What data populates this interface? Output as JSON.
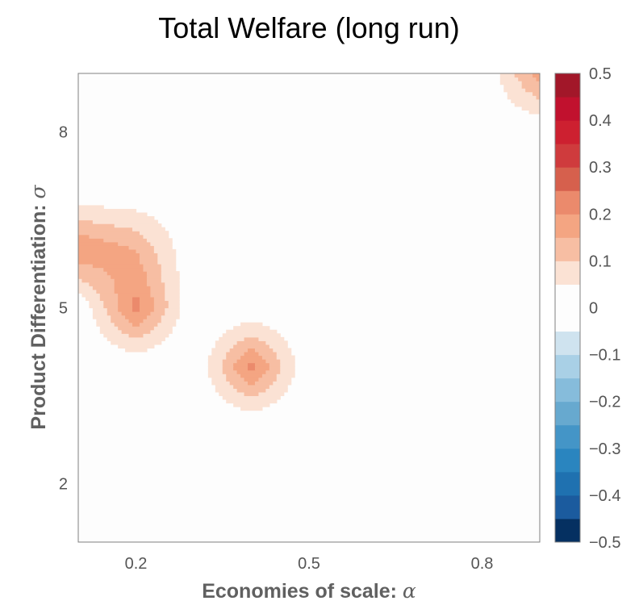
{
  "chart_data": {
    "type": "heatmap",
    "title": "Total Welfare (long run)",
    "xlabel": "Economies of scale: ",
    "xlabel_symbol": "α",
    "ylabel": "Product Differentiation: ",
    "ylabel_symbol": "σ",
    "x_ticks": [
      {
        "value": 0.2,
        "label": "0.2"
      },
      {
        "value": 0.5,
        "label": "0.5"
      },
      {
        "value": 0.8,
        "label": "0.8"
      }
    ],
    "y_ticks": [
      {
        "value": 2,
        "label": "2"
      },
      {
        "value": 5,
        "label": "5"
      },
      {
        "value": 8,
        "label": "8"
      }
    ],
    "xlim": [
      0.1,
      0.9
    ],
    "ylim": [
      1,
      9
    ],
    "grid": false,
    "grid_x": [
      0.1,
      0.2,
      0.3,
      0.4,
      0.5,
      0.6,
      0.7,
      0.8,
      0.9
    ],
    "grid_y": [
      1,
      2,
      3,
      4,
      5,
      6,
      7,
      8,
      9
    ],
    "z": [
      [
        0,
        0,
        0,
        0,
        0,
        0,
        0,
        0,
        0
      ],
      [
        0,
        0,
        0,
        0,
        0,
        0,
        0,
        0,
        0
      ],
      [
        0,
        0,
        0,
        0,
        0,
        0,
        0,
        0,
        0
      ],
      [
        0,
        0,
        0,
        0.22,
        0,
        0,
        0,
        0,
        0
      ],
      [
        0,
        0.22,
        0,
        0,
        0,
        0,
        0,
        0,
        0
      ],
      [
        0.2,
        0.15,
        0,
        0,
        0,
        0,
        0,
        0,
        0
      ],
      [
        0,
        0,
        0,
        0,
        0,
        0,
        0,
        0,
        0
      ],
      [
        0,
        0,
        0,
        0,
        0,
        0,
        0,
        0,
        0
      ],
      [
        0,
        0,
        0,
        0,
        0,
        0,
        0,
        0,
        0.18
      ]
    ],
    "colorbar": {
      "min": -0.5,
      "max": 0.5,
      "ticks": [
        "0.5",
        "0.4",
        "0.3",
        "0.2",
        "0.1",
        "0",
        "−0.1",
        "−0.2",
        "−0.3",
        "−0.4",
        "−0.5"
      ],
      "levels": [
        -0.5,
        -0.45,
        -0.4,
        -0.35,
        -0.3,
        -0.25,
        -0.2,
        -0.15,
        -0.1,
        -0.05,
        0.05,
        0.1,
        0.15,
        0.2,
        0.25,
        0.3,
        0.35,
        0.4,
        0.45,
        0.5
      ],
      "colors": [
        "#053061",
        "#1b5b9e",
        "#1f71b0",
        "#2a85bf",
        "#4495c7",
        "#67a9cf",
        "#86bcdb",
        "#a9d0e6",
        "#cfe3ef",
        "#fdfdfd",
        "#fbe2d4",
        "#f7bea3",
        "#f4a582",
        "#eb8a6c",
        "#d6604d",
        "#cf3b3d",
        "#cd2030",
        "#c1112e",
        "#a21729",
        "#67001f"
      ]
    }
  }
}
